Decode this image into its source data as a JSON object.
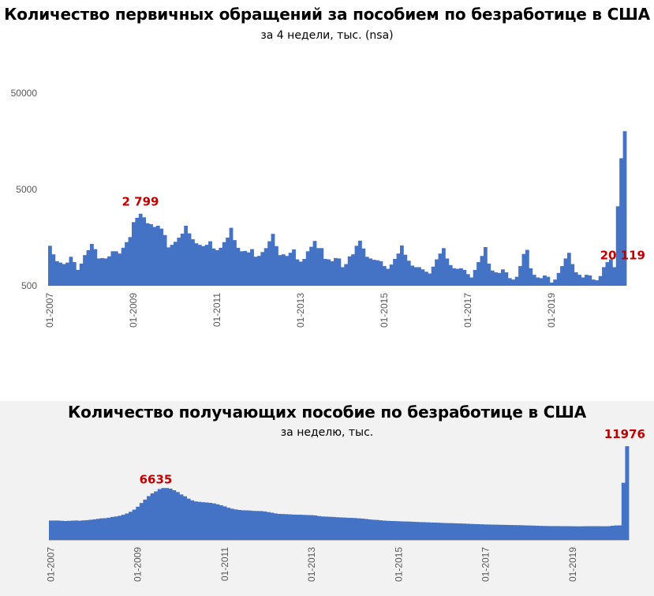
{
  "chart_data": [
    {
      "type": "bar",
      "title": "Количество первичных обращений за пособием по безработице в США",
      "subtitle": "за 4 недели, тыс. (nsa)",
      "yscale": "log",
      "ylim": [
        500,
        50000
      ],
      "ytick_labels": [
        "50000",
        "5000",
        "500"
      ],
      "ytick_values": [
        50000,
        5000,
        500
      ],
      "xtick_labels": [
        "01-2007",
        "01-2009",
        "01-2011",
        "01-2013",
        "01-2015",
        "01-2017",
        "01-2019"
      ],
      "xtick_indices": [
        0,
        24,
        48,
        72,
        96,
        120,
        144
      ],
      "annotations": [
        {
          "text": "2 799",
          "index": 26
        },
        {
          "text": "20 119",
          "index": 159
        }
      ],
      "values": [
        1300,
        1060,
        900,
        870,
        840,
        870,
        1000,
        880,
        730,
        850,
        1040,
        1170,
        1360,
        1200,
        960,
        970,
        960,
        1010,
        1140,
        1140,
        1080,
        1240,
        1420,
        1600,
        2290,
        2540,
        2799,
        2570,
        2230,
        2180,
        2040,
        2100,
        1960,
        1680,
        1250,
        1330,
        1430,
        1580,
        1740,
        2100,
        1750,
        1520,
        1380,
        1330,
        1290,
        1330,
        1450,
        1220,
        1170,
        1240,
        1420,
        1580,
        2000,
        1490,
        1240,
        1140,
        1150,
        1110,
        1200,
        1000,
        1020,
        1120,
        1230,
        1450,
        1730,
        1290,
        1040,
        1060,
        1020,
        1100,
        1190,
        940,
        890,
        950,
        1140,
        1270,
        1460,
        1230,
        1230,
        950,
        940,
        900,
        970,
        960,
        780,
        840,
        1010,
        1060,
        1300,
        1470,
        1220,
        1000,
        960,
        930,
        920,
        900,
        800,
        750,
        830,
        950,
        1080,
        1310,
        1050,
        910,
        810,
        780,
        780,
        740,
        700,
        670,
        790,
        940,
        1080,
        1230,
        960,
        820,
        760,
        750,
        760,
        730,
        660,
        610,
        730,
        880,
        1020,
        1260,
        850,
        720,
        690,
        680,
        740,
        690,
        600,
        580,
        620,
        800,
        1070,
        1180,
        760,
        650,
        610,
        600,
        640,
        620,
        540,
        580,
        680,
        800,
        960,
        1100,
        840,
        690,
        650,
        610,
        650,
        640,
        580,
        570,
        630,
        780,
        880,
        940,
        780,
        3340,
        10540,
        20119
      ]
    },
    {
      "type": "bar",
      "title": "Количество получающих пособие по безработице  в США",
      "subtitle": "за неделю, тыс.",
      "ylim": [
        0,
        12000
      ],
      "xtick_labels": [
        "01-2007",
        "01-2009",
        "01-2011",
        "01-2013",
        "01-2015",
        "01-2017",
        "01-2019"
      ],
      "xtick_indices": [
        0,
        24,
        48,
        72,
        96,
        120,
        144
      ],
      "annotations": [
        {
          "text": "6635",
          "index": 29
        },
        {
          "text": "11976",
          "index": 159
        }
      ],
      "values": [
        2480,
        2480,
        2480,
        2450,
        2420,
        2440,
        2470,
        2480,
        2460,
        2500,
        2530,
        2580,
        2630,
        2700,
        2760,
        2780,
        2840,
        2940,
        3000,
        3090,
        3220,
        3380,
        3600,
        3870,
        4250,
        4720,
        5150,
        5600,
        5950,
        6200,
        6500,
        6635,
        6635,
        6560,
        6350,
        6120,
        5810,
        5580,
        5280,
        5060,
        4920,
        4870,
        4820,
        4790,
        4740,
        4670,
        4560,
        4430,
        4290,
        4120,
        3990,
        3900,
        3830,
        3790,
        3780,
        3760,
        3710,
        3700,
        3690,
        3640,
        3560,
        3480,
        3390,
        3330,
        3310,
        3290,
        3270,
        3240,
        3230,
        3220,
        3200,
        3180,
        3170,
        3130,
        3050,
        3000,
        2980,
        2960,
        2940,
        2900,
        2880,
        2860,
        2830,
        2820,
        2800,
        2760,
        2730,
        2680,
        2620,
        2580,
        2560,
        2510,
        2470,
        2440,
        2420,
        2410,
        2390,
        2370,
        2360,
        2350,
        2320,
        2300,
        2280,
        2270,
        2250,
        2230,
        2220,
        2200,
        2180,
        2160,
        2150,
        2140,
        2120,
        2110,
        2090,
        2070,
        2050,
        2030,
        2020,
        2000,
        1980,
        1970,
        1960,
        1950,
        1940,
        1930,
        1920,
        1910,
        1900,
        1890,
        1880,
        1860,
        1850,
        1840,
        1820,
        1800,
        1790,
        1780,
        1770,
        1770,
        1770,
        1760,
        1760,
        1760,
        1750,
        1740,
        1740,
        1750,
        1760,
        1760,
        1760,
        1760,
        1750,
        1750,
        1760,
        1820,
        1850,
        1860,
        7300,
        11976
      ]
    }
  ]
}
